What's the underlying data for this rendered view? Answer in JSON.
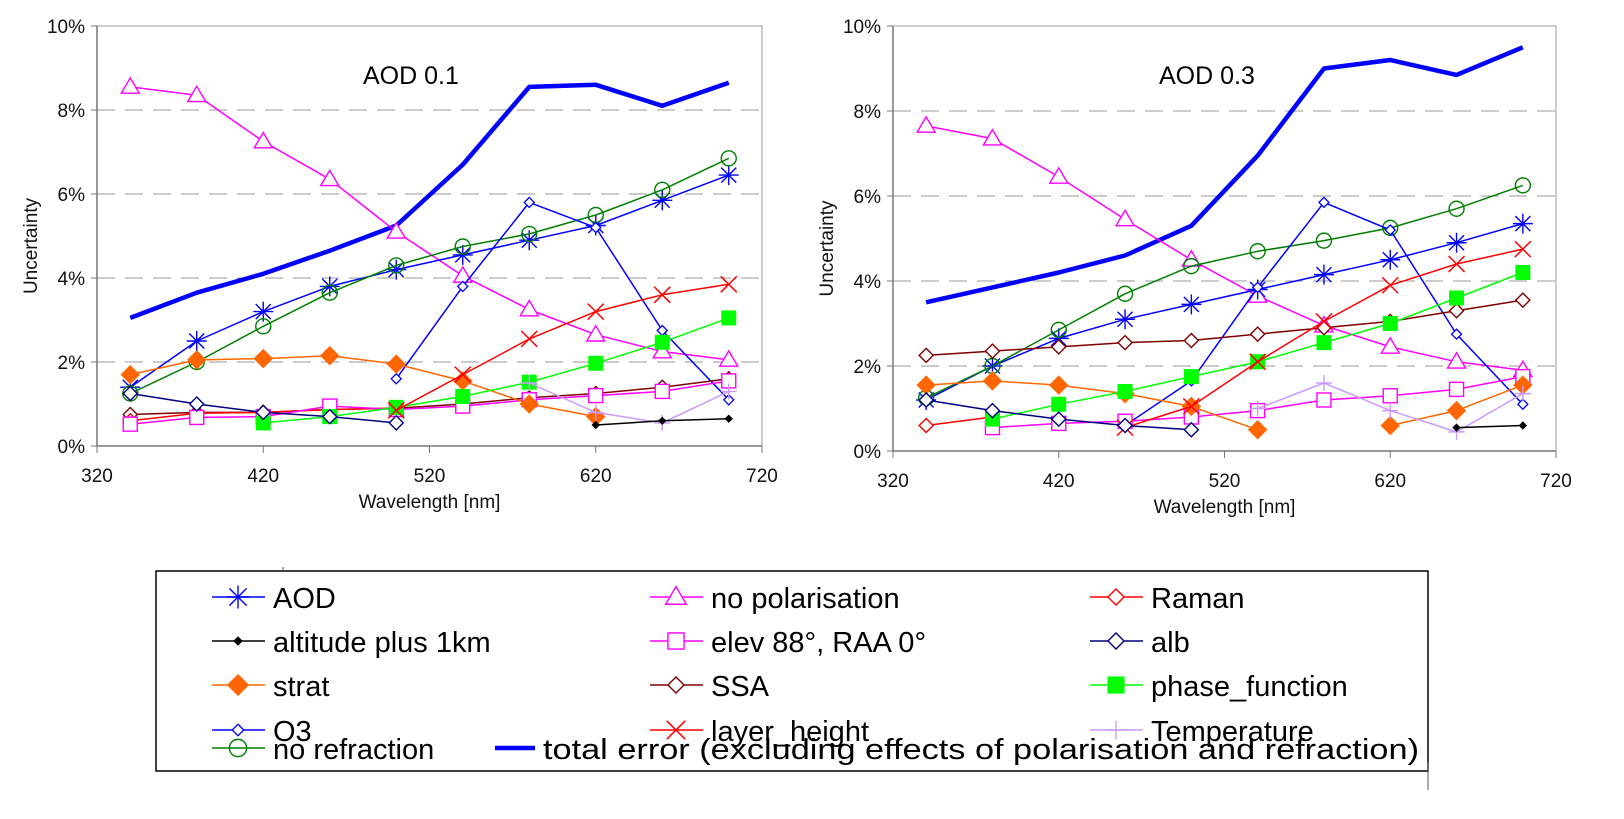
{
  "chart_data": [
    {
      "type": "line",
      "title": "AOD 0.1",
      "xlabel": "Wavelength [nm]",
      "ylabel": "Uncertainty",
      "xlim": [
        320,
        720
      ],
      "ylim": [
        0,
        10
      ],
      "xticks": [
        "320",
        "420",
        "520",
        "620",
        "720"
      ],
      "yticks": [
        "0%",
        "2%",
        "4%",
        "6%",
        "8%",
        "10%"
      ],
      "grid": "horizontal-dashed",
      "x": [
        340,
        380,
        420,
        460,
        500,
        540,
        580,
        620,
        660,
        700
      ],
      "series": [
        {
          "key": "total",
          "values": [
            3.05,
            3.65,
            4.1,
            4.65,
            5.25,
            6.7,
            8.55,
            8.6,
            8.1,
            8.65
          ]
        },
        {
          "key": "nopol",
          "values": [
            8.55,
            8.35,
            7.25,
            6.35,
            5.1,
            4.05,
            3.25,
            2.65,
            2.25,
            2.05
          ]
        },
        {
          "key": "aod",
          "values": [
            1.4,
            2.5,
            3.2,
            3.8,
            4.2,
            4.55,
            4.9,
            5.25,
            5.85,
            6.45
          ]
        },
        {
          "key": "norefr",
          "values": [
            1.25,
            2.0,
            2.85,
            3.65,
            4.3,
            4.75,
            5.05,
            5.5,
            6.1,
            6.85
          ]
        },
        {
          "key": "strat",
          "values": [
            1.7,
            2.05,
            2.08,
            2.15,
            1.95,
            1.55,
            1.0,
            0.7,
            null,
            null
          ]
        },
        {
          "key": "o3",
          "values": [
            null,
            null,
            null,
            null,
            1.6,
            3.8,
            5.8,
            5.2,
            2.75,
            1.1
          ]
        },
        {
          "key": "alb",
          "values": [
            1.25,
            1.0,
            0.8,
            0.7,
            0.55,
            null,
            null,
            null,
            null,
            null
          ]
        },
        {
          "key": "ssa",
          "values": [
            0.75,
            0.8,
            0.8,
            0.87,
            0.9,
            1.0,
            1.15,
            1.25,
            1.4,
            1.6
          ]
        },
        {
          "key": "raman",
          "values": [
            0.6,
            0.78,
            0.8,
            0.87,
            0.9,
            null,
            null,
            null,
            null,
            null
          ]
        },
        {
          "key": "elev",
          "values": [
            0.52,
            0.68,
            0.7,
            0.95,
            0.87,
            0.95,
            1.1,
            1.2,
            1.3,
            1.55
          ]
        },
        {
          "key": "phase",
          "values": [
            null,
            null,
            0.55,
            0.7,
            0.92,
            1.18,
            1.52,
            1.97,
            2.47,
            3.05
          ]
        },
        {
          "key": "layer",
          "values": [
            null,
            null,
            null,
            null,
            0.85,
            1.7,
            2.55,
            3.2,
            3.6,
            3.85
          ]
        },
        {
          "key": "temp",
          "values": [
            null,
            null,
            null,
            null,
            null,
            null,
            1.5,
            0.8,
            0.55,
            1.3
          ]
        },
        {
          "key": "alt",
          "values": [
            null,
            null,
            null,
            null,
            null,
            null,
            null,
            0.5,
            0.6,
            0.65
          ]
        }
      ]
    },
    {
      "type": "line",
      "title": "AOD 0.3",
      "xlabel": "Wavelength [nm]",
      "ylabel": "Uncertainty",
      "xlim": [
        320,
        720
      ],
      "ylim": [
        0,
        10
      ],
      "xticks": [
        "320",
        "420",
        "520",
        "620",
        "720"
      ],
      "yticks": [
        "0%",
        "2%",
        "4%",
        "6%",
        "8%",
        "10%"
      ],
      "grid": "horizontal-dashed",
      "x": [
        340,
        380,
        420,
        460,
        500,
        540,
        580,
        620,
        660,
        700
      ],
      "series": [
        {
          "key": "total",
          "values": [
            3.5,
            3.85,
            4.2,
            4.6,
            5.3,
            6.95,
            9.0,
            9.2,
            8.85,
            9.5
          ]
        },
        {
          "key": "nopol",
          "values": [
            7.65,
            7.35,
            6.45,
            5.45,
            4.5,
            3.65,
            2.95,
            2.45,
            2.1,
            1.9
          ]
        },
        {
          "key": "aod",
          "values": [
            1.2,
            2.0,
            2.65,
            3.1,
            3.45,
            3.8,
            4.15,
            4.5,
            4.9,
            5.35
          ]
        },
        {
          "key": "norefr",
          "values": [
            1.25,
            2.0,
            2.85,
            3.7,
            4.35,
            4.7,
            4.95,
            5.25,
            5.7,
            6.25
          ]
        },
        {
          "key": "strat",
          "values": [
            1.55,
            1.65,
            1.55,
            1.35,
            1.05,
            0.5,
            null,
            0.6,
            0.95,
            1.55
          ]
        },
        {
          "key": "o3",
          "values": [
            null,
            null,
            null,
            0.6,
            1.65,
            3.85,
            5.85,
            5.2,
            2.75,
            1.1
          ]
        },
        {
          "key": "alb",
          "values": [
            1.2,
            0.95,
            0.75,
            0.6,
            0.5,
            null,
            null,
            null,
            null,
            null
          ]
        },
        {
          "key": "ssa",
          "values": [
            2.25,
            2.35,
            2.45,
            2.55,
            2.6,
            2.75,
            2.9,
            3.05,
            3.3,
            3.55
          ]
        },
        {
          "key": "raman",
          "values": [
            0.6,
            0.8,
            null,
            null,
            null,
            null,
            null,
            null,
            null,
            null
          ]
        },
        {
          "key": "elev",
          "values": [
            null,
            0.55,
            0.65,
            0.7,
            0.8,
            0.95,
            1.2,
            1.3,
            1.45,
            1.75
          ]
        },
        {
          "key": "phase",
          "values": [
            null,
            0.75,
            1.1,
            1.4,
            1.75,
            2.1,
            2.55,
            3.0,
            3.6,
            4.2
          ]
        },
        {
          "key": "layer",
          "values": [
            null,
            null,
            null,
            0.55,
            1.05,
            2.1,
            3.05,
            3.9,
            4.4,
            4.75
          ]
        },
        {
          "key": "temp",
          "values": [
            null,
            null,
            null,
            null,
            null,
            1.0,
            1.6,
            0.95,
            0.45,
            1.35
          ]
        },
        {
          "key": "alt",
          "values": [
            null,
            null,
            null,
            null,
            null,
            null,
            null,
            null,
            0.55,
            0.6
          ]
        }
      ]
    }
  ],
  "legend": {
    "items": [
      {
        "key": "aod",
        "label": "AOD",
        "color": "#0000ff",
        "marker": "asterisk"
      },
      {
        "key": "nopol",
        "label": "no polarisation",
        "color": "#ff00ff",
        "marker": "triangle-open"
      },
      {
        "key": "raman",
        "label": "Raman",
        "color": "#ff0000",
        "marker": "diamond-open"
      },
      {
        "key": "alt",
        "label": "altitude plus 1km",
        "color": "#000000",
        "marker": "diamond-small-filled"
      },
      {
        "key": "elev",
        "label": "elev 88°, RAA 0°",
        "color": "#ff00ff",
        "marker": "square-open"
      },
      {
        "key": "alb",
        "label": "alb",
        "color": "#000080",
        "marker": "diamond-open"
      },
      {
        "key": "strat",
        "label": "strat",
        "color": "#ff6600",
        "marker": "diamond-filled"
      },
      {
        "key": "ssa",
        "label": "SSA",
        "color": "#800000",
        "marker": "diamond-open"
      },
      {
        "key": "phase",
        "label": "phase_function",
        "color": "#00ff00",
        "marker": "square-filled"
      },
      {
        "key": "o3",
        "label": "O3",
        "color": "#0000ff",
        "marker": "diamond-open-small"
      },
      {
        "key": "layer",
        "label": "layer_height",
        "color": "#ff0000",
        "marker": "x"
      },
      {
        "key": "temp",
        "label": "Temperature",
        "color": "#cc99ff",
        "marker": "plus"
      },
      {
        "key": "norefr",
        "label": "no refraction",
        "color": "#008000",
        "marker": "circle-open"
      },
      {
        "key": "total",
        "label": "total error (excluding effects of polarisation and refraction)",
        "color": "#0000ff",
        "marker": "none-thick"
      }
    ]
  }
}
